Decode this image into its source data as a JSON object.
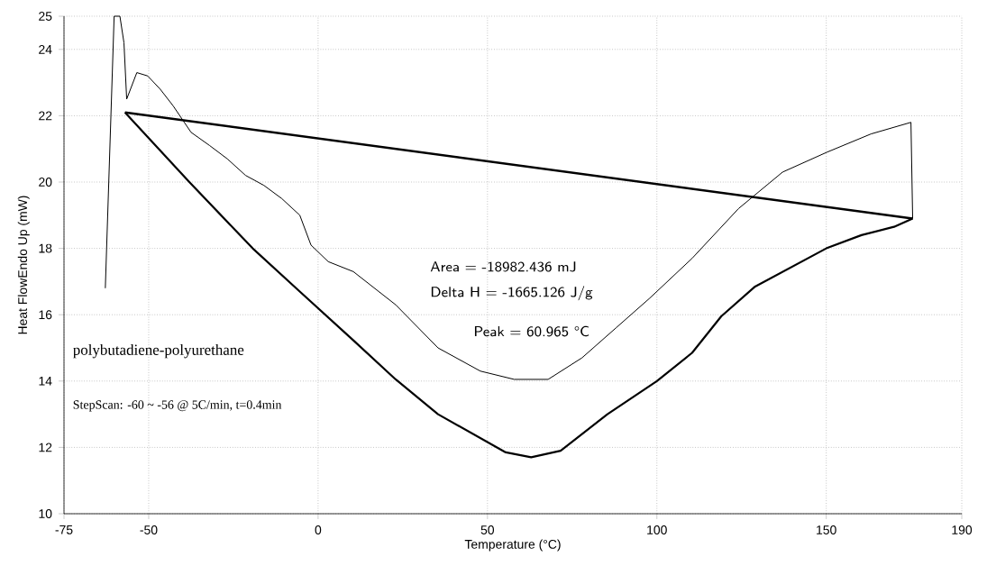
{
  "chart_data": {
    "type": "line",
    "xlabel": "Temperature (°C)",
    "ylabel": "Heat FlowEndo Up (mW)",
    "xlim": [
      -75,
      190
    ],
    "xticks": [
      -75,
      -50,
      0,
      50,
      100,
      150,
      190
    ],
    "ylim": [
      10,
      25
    ],
    "yticks": [
      10,
      12,
      14,
      16,
      18,
      20,
      22,
      24,
      25
    ],
    "grid": true,
    "marker": "none",
    "line_style": "solid",
    "annotations": [
      "Area = -18982.436 mJ",
      "Delta H = -1665.126 J/g",
      "Peak = 60.965 °C",
      "polybutadiene-polyurethane",
      "StepScan: -60 ~ -56 @ 5C/min, t=0.4min"
    ],
    "series": [
      {
        "color": "#000000",
        "x": [
          -62.8,
          -60.2,
          -58.5,
          -57.3,
          -56.5,
          -53.5,
          -50.3,
          -46.6,
          -42.8,
          -37.5,
          -32,
          -26.8,
          -21.4,
          -16,
          -10.7,
          -5.4,
          -2.1,
          3,
          10.4,
          22.9,
          35.4,
          47.9,
          57.9,
          67.9,
          77.9,
          87.9,
          97.9,
          110.4,
          124.1,
          137.1,
          150.2,
          163.2,
          175,
          175.5
        ],
        "values": [
          16.8,
          25,
          25,
          24.2,
          22.5,
          23.3,
          23.2,
          22.8,
          22.3,
          21.5,
          21.1,
          20.7,
          20.2,
          19.9,
          19.5,
          19.0,
          18.1,
          17.6,
          17.3,
          16.3,
          15.0,
          14.3,
          14.05,
          14.05,
          14.7,
          15.6,
          16.5,
          17.7,
          19.2,
          20.3,
          20.9,
          21.45,
          21.8,
          18.9
        ]
      },
      {
        "color": "#000000",
        "x": [
          -57,
          -38,
          -19.3,
          -5.4,
          10.7,
          22.9,
          35.4,
          55.4,
          62.9,
          71.6,
          85.4,
          100,
          110.4,
          119,
          129,
          150,
          160.4,
          170,
          175.5
        ],
        "values": [
          22.1,
          20.0,
          18.0,
          16.7,
          15.2,
          14.05,
          13.0,
          11.85,
          11.7,
          11.9,
          13.0,
          14.0,
          14.85,
          15.95,
          16.85,
          18.0,
          18.4,
          18.65,
          18.9
        ]
      },
      {
        "color": "#000000",
        "x": [
          -57,
          175.5
        ],
        "values": [
          22.1,
          18.9
        ]
      }
    ]
  }
}
